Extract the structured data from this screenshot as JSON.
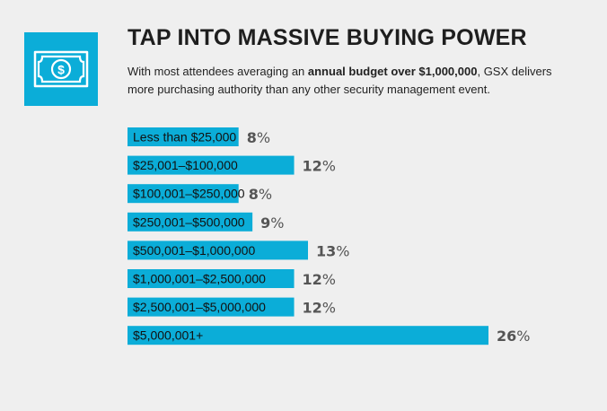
{
  "header": {
    "title": "TAP INTO MASSIVE BUYING POWER",
    "desc_part1": "With most attendees averaging an ",
    "desc_bold": "annual budget over $1,000,000",
    "desc_part2": ", GSX delivers more purchasing authority than any other security management event."
  },
  "icon": {
    "name": "dollar-bill-icon",
    "bg_color": "#0badd8"
  },
  "chart_data": {
    "type": "bar",
    "orientation": "horizontal",
    "categories": [
      "Less than $25,000",
      "$25,001–$100,000",
      "$100,001–$250,000",
      "$250,001–$500,000",
      "$500,001–$1,000,000",
      "$1,000,001–$2,500,000",
      "$2,500,001–$5,000,000",
      "$5,000,001+"
    ],
    "values": [
      8,
      12,
      8,
      9,
      13,
      12,
      12,
      26
    ],
    "value_suffix": "%",
    "bar_color": "#0badd8",
    "xlim": [
      0,
      26
    ]
  }
}
